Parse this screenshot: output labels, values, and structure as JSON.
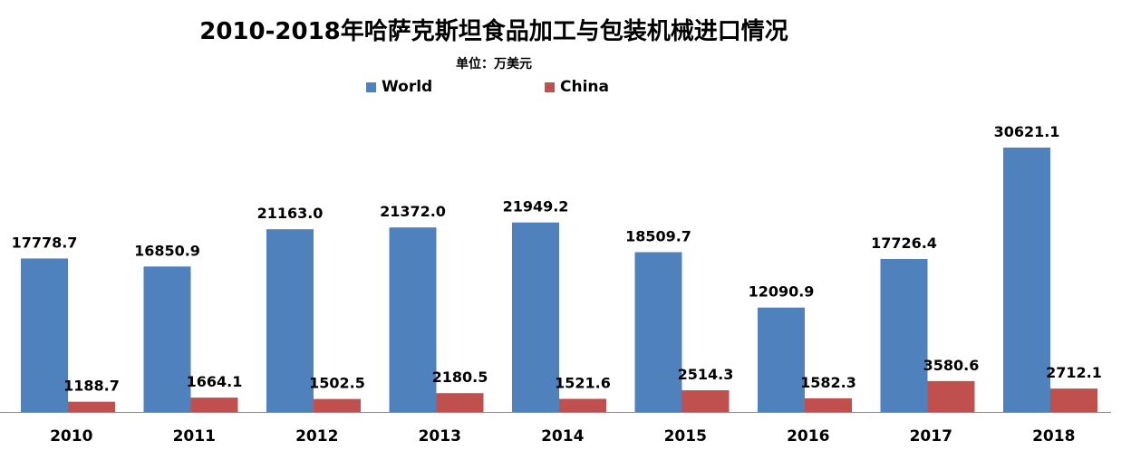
{
  "chart_data": {
    "type": "bar",
    "title": "2010-2018年哈萨克斯坦食品加工与包装机械进口情况",
    "subtitle": "单位：万美元",
    "categories": [
      "2010",
      "2011",
      "2012",
      "2013",
      "2014",
      "2015",
      "2016",
      "2017",
      "2018"
    ],
    "series": [
      {
        "name": "World",
        "color": "#4F81BD",
        "values": [
          17778.7,
          16850.9,
          21163.0,
          21372.0,
          21949.2,
          18509.7,
          12090.9,
          17726.4,
          30621.1
        ]
      },
      {
        "name": "China",
        "color": "#C0504D",
        "values": [
          1188.7,
          1664.1,
          1502.5,
          2180.5,
          1521.6,
          2514.3,
          1582.3,
          3580.6,
          2712.1
        ]
      }
    ],
    "ylim": [
      0,
      32000
    ],
    "grid": false,
    "legend_position": "top"
  }
}
